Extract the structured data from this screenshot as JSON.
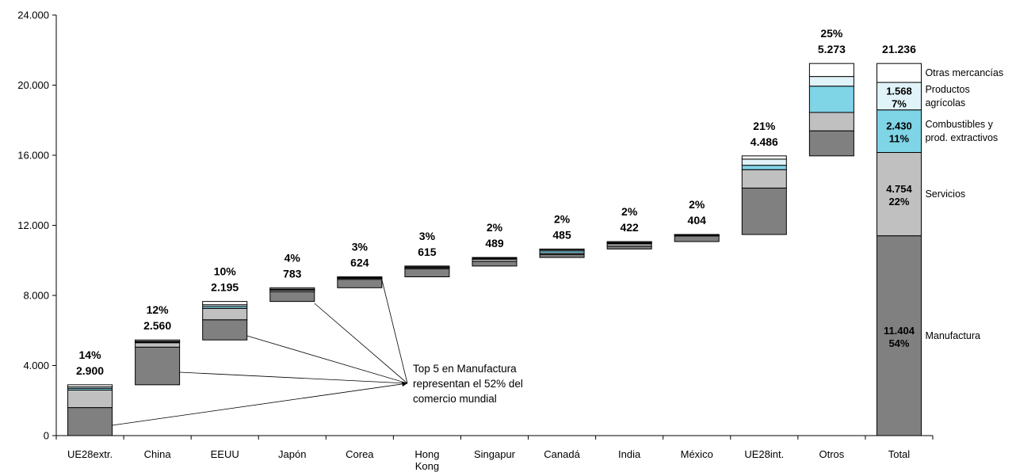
{
  "chart_data": {
    "type": "bar",
    "subtype": "waterfall-stacked",
    "ylim": [
      0,
      24000
    ],
    "yticks": [
      "0",
      "4.000",
      "8.000",
      "12.000",
      "16.000",
      "20.000",
      "24.000"
    ],
    "ytick_values": [
      0,
      4000,
      8000,
      12000,
      16000,
      20000,
      24000
    ],
    "categories": [
      "UE28extr.",
      "China",
      "EEUU",
      "Japón",
      "Corea",
      "Hong Kong",
      "Singapur",
      "Canadá",
      "India",
      "México",
      "UE28int.",
      "Otros",
      "Total"
    ],
    "segment_names": [
      "Manufactura",
      "Servicios",
      "Combustibles y prod. extractivos",
      "Productos agrícolas",
      "Otras mercancías"
    ],
    "colors": {
      "Manufactura": "#808080",
      "Servicios": "#c0c0c0",
      "Combustibles y prod. extractivos": "#7fd4e6",
      "Productos agrícolas": "#e0f3f8",
      "Otras mercancías": "#ffffff"
    },
    "bars": [
      {
        "category": "UE28extr.",
        "pct": "14%",
        "value_label": "2.900",
        "base": 0,
        "segments": [
          1600,
          1000,
          100,
          80,
          120
        ]
      },
      {
        "category": "China",
        "pct": "12%",
        "value_label": "2.560",
        "base": 2900,
        "segments": [
          2150,
          250,
          40,
          50,
          70
        ]
      },
      {
        "category": "EEUU",
        "pct": "10%",
        "value_label": "2.195",
        "base": 5460,
        "segments": [
          1150,
          650,
          110,
          100,
          185
        ]
      },
      {
        "category": "Japón",
        "pct": "4%",
        "value_label": "783",
        "base": 7655,
        "segments": [
          560,
          90,
          30,
          30,
          73
        ]
      },
      {
        "category": "Corea",
        "pct": "3%",
        "value_label": "624",
        "base": 8438,
        "segments": [
          480,
          60,
          30,
          20,
          34
        ]
      },
      {
        "category": "Hong Kong",
        "pct": "3%",
        "value_label": "615",
        "base": 9062,
        "segments": [
          460,
          70,
          10,
          25,
          50
        ]
      },
      {
        "category": "Singapur",
        "pct": "2%",
        "value_label": "489",
        "base": 9677,
        "segments": [
          270,
          120,
          40,
          20,
          39
        ]
      },
      {
        "category": "Canadá",
        "pct": "2%",
        "value_label": "485",
        "base": 10166,
        "segments": [
          170,
          70,
          130,
          60,
          55
        ]
      },
      {
        "category": "India",
        "pct": "2%",
        "value_label": "422",
        "base": 10651,
        "segments": [
          160,
          130,
          40,
          40,
          52
        ]
      },
      {
        "category": "México",
        "pct": "2%",
        "value_label": "404",
        "base": 11073,
        "segments": [
          320,
          30,
          20,
          20,
          14
        ]
      },
      {
        "category": "UE28int.",
        "pct": "21%",
        "value_label": "4.486",
        "base": 11477,
        "segments": [
          2650,
          1050,
          250,
          350,
          186
        ]
      },
      {
        "category": "Otros",
        "pct": "25%",
        "value_label": "5.273",
        "base": 15963,
        "segments": [
          1430,
          1050,
          1500,
          550,
          743
        ]
      },
      {
        "category": "Total",
        "pct": "",
        "value_label": "21.236",
        "base": 0,
        "segments": [
          11404,
          4754,
          2430,
          1568,
          1080
        ]
      }
    ],
    "total_segment_labels": [
      {
        "value": "11.404",
        "pct": "54%"
      },
      {
        "value": "4.754",
        "pct": "22%"
      },
      {
        "value": "2.430",
        "pct": "11%"
      },
      {
        "value": "1.568",
        "pct": "7%"
      },
      {
        "value": "",
        "pct": ""
      }
    ],
    "legend_labels": [
      [
        "Manufactura"
      ],
      [
        "Servicios"
      ],
      [
        "Combustibles  y",
        "prod. extractivos"
      ],
      [
        "Productos",
        "agrícolas"
      ],
      [
        "Otras mercancías"
      ]
    ],
    "annotation": {
      "lines": [
        "Top 5 en Manufactura",
        "representan  el 52% del",
        "comercio  mundial"
      ],
      "targets": [
        "UE28extr.",
        "China",
        "EEUU",
        "Japón",
        "Corea"
      ]
    }
  }
}
